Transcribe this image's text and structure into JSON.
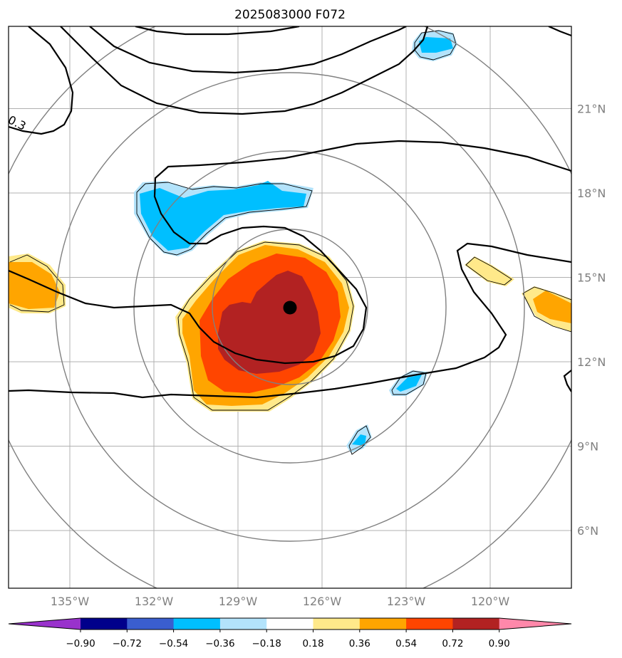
{
  "chart_data": {
    "type": "map-contour",
    "title": "2025083000 F072",
    "lon_ticks": [
      "135°W",
      "132°W",
      "129°W",
      "126°W",
      "123°W",
      "120°W"
    ],
    "lat_ticks": [
      "21°N",
      "18°N",
      "15°N",
      "12°N",
      "9°N",
      "6°N"
    ],
    "lon_values": [
      -135,
      -132,
      -129,
      -126,
      -123,
      -120
    ],
    "lat_values": [
      21,
      18,
      15,
      12,
      9,
      6
    ],
    "center_lon": -127.3,
    "center_lat": 13.9,
    "contour_label": "0.3",
    "colorbar": {
      "boundaries": [
        "−0.90",
        "−0.72",
        "−0.54",
        "−0.36",
        "−0.18",
        "0.18",
        "0.36",
        "0.54",
        "0.72",
        "0.90"
      ],
      "colors": [
        "#9932cc",
        "#00008b",
        "#3a5ecf",
        "#00bfff",
        "#b3e3fb",
        "#ffffff",
        "#ffe98a",
        "#ffa500",
        "#ff4500",
        "#b22222",
        "#ff88aa"
      ],
      "extend": "both"
    }
  }
}
